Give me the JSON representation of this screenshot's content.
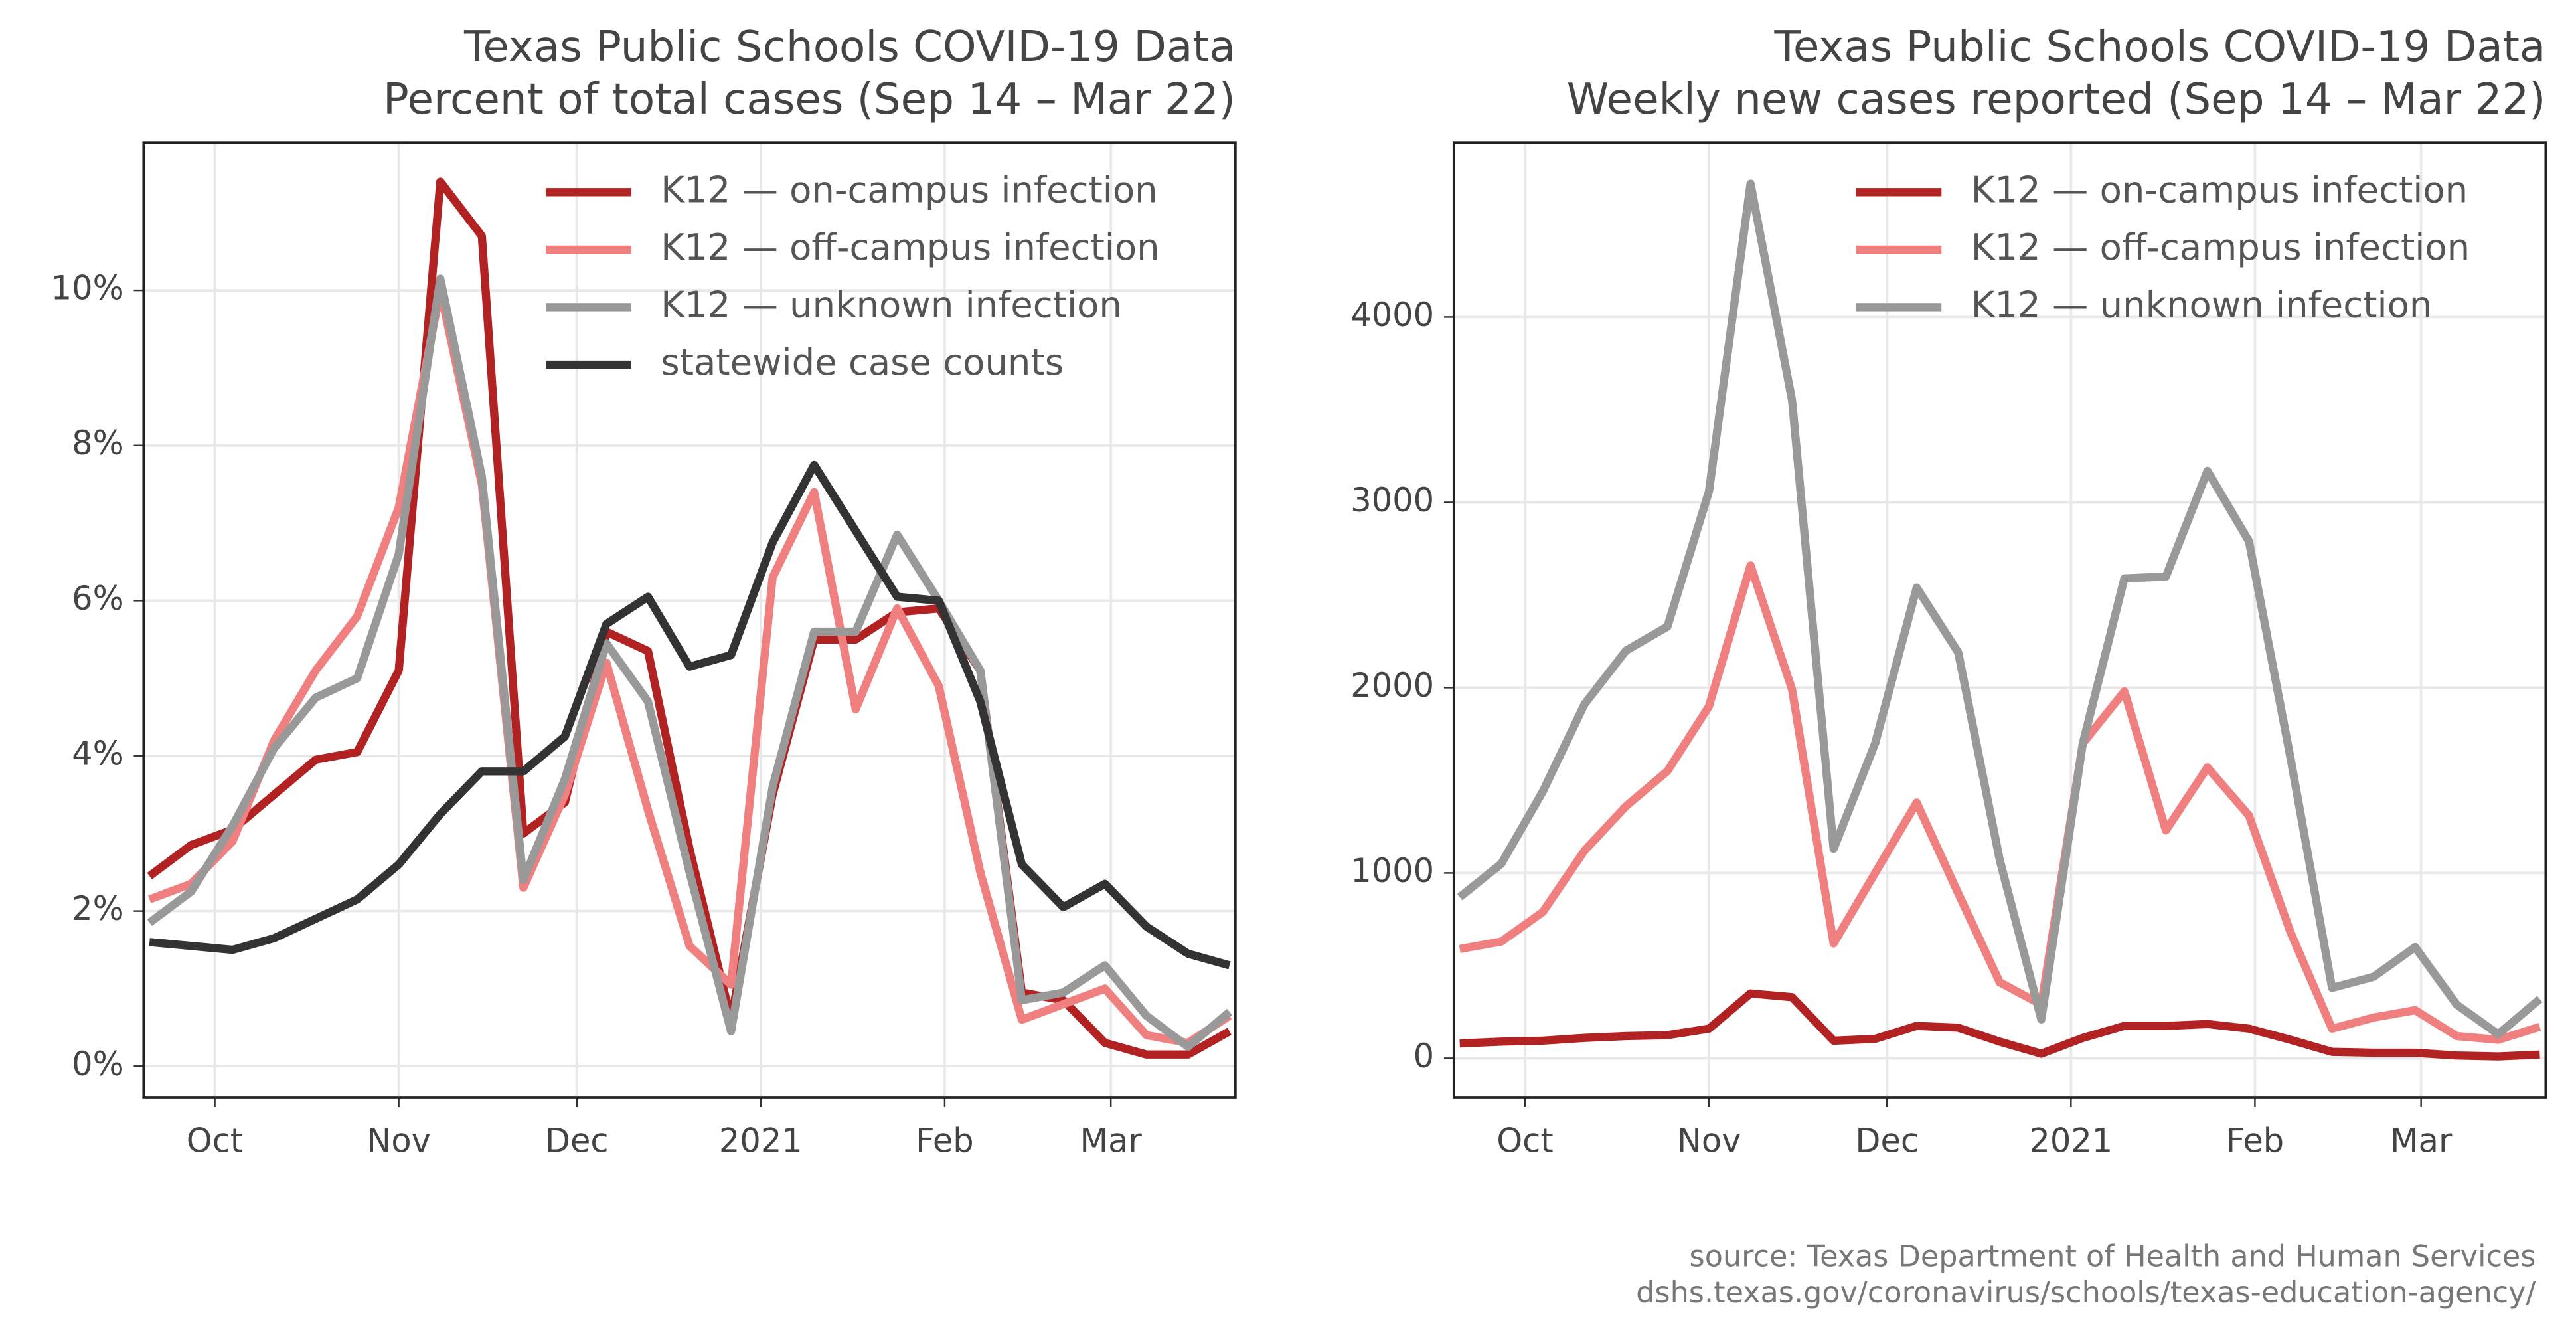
{
  "chart_data": [
    {
      "type": "line",
      "title": "Texas Public Schools COVID-19 Data",
      "subtitle": "Percent of total cases (Sep 14 – Mar 22)",
      "x": [
        "2020-09-20",
        "2020-09-27",
        "2020-10-04",
        "2020-10-11",
        "2020-10-18",
        "2020-10-25",
        "2020-11-01",
        "2020-11-08",
        "2020-11-15",
        "2020-11-22",
        "2020-11-29",
        "2020-12-06",
        "2020-12-13",
        "2020-12-20",
        "2020-12-27",
        "2021-01-03",
        "2021-01-10",
        "2021-01-17",
        "2021-01-24",
        "2021-01-31",
        "2021-02-07",
        "2021-02-14",
        "2021-02-21",
        "2021-02-28",
        "2021-03-07",
        "2021-03-14",
        "2021-03-21"
      ],
      "xlim": [
        "2020-09-19",
        "2021-03-22"
      ],
      "xticks": [
        {
          "value": "2020-10-01",
          "label": "Oct"
        },
        {
          "value": "2020-11-01",
          "label": "Nov"
        },
        {
          "value": "2020-12-01",
          "label": "Dec"
        },
        {
          "value": "2021-01-01",
          "label": "2021"
        },
        {
          "value": "2021-02-01",
          "label": "Feb"
        },
        {
          "value": "2021-03-01",
          "label": "Mar"
        }
      ],
      "ylim": [
        -0.4,
        11.9
      ],
      "yticks": [
        {
          "value": 0,
          "label": "0%"
        },
        {
          "value": 2,
          "label": "2%"
        },
        {
          "value": 4,
          "label": "4%"
        },
        {
          "value": 6,
          "label": "6%"
        },
        {
          "value": 8,
          "label": "8%"
        },
        {
          "value": 10,
          "label": "10%"
        }
      ],
      "grid": true,
      "legend": "upper right",
      "series": [
        {
          "name": "K12 — on-campus infection",
          "color": "#b22222",
          "values": [
            2.45,
            2.85,
            3.05,
            3.5,
            3.95,
            4.05,
            5.1,
            11.4,
            10.7,
            3.0,
            3.4,
            5.6,
            5.35,
            2.8,
            0.6,
            3.5,
            5.5,
            5.5,
            5.85,
            5.9,
            5.1,
            0.95,
            0.85,
            0.3,
            0.15,
            0.15,
            0.45
          ]
        },
        {
          "name": "K12 — off-campus infection",
          "color": "#f08080",
          "values": [
            2.15,
            2.35,
            2.9,
            4.2,
            5.1,
            5.8,
            7.2,
            10.0,
            7.5,
            2.3,
            3.5,
            5.2,
            3.3,
            1.55,
            1.05,
            6.3,
            7.4,
            4.6,
            5.9,
            4.9,
            2.5,
            0.6,
            0.8,
            1.0,
            0.4,
            0.3,
            0.65
          ]
        },
        {
          "name": "K12 — unknown infection",
          "color": "#999999",
          "values": [
            1.85,
            2.25,
            3.1,
            4.1,
            4.75,
            5.0,
            6.6,
            10.15,
            7.6,
            2.4,
            3.7,
            5.45,
            4.7,
            2.5,
            0.45,
            3.6,
            5.6,
            5.6,
            6.85,
            6.0,
            5.1,
            0.85,
            0.95,
            1.3,
            0.65,
            0.25,
            0.7
          ]
        },
        {
          "name": "statewide case counts",
          "color": "#333333",
          "values": [
            1.6,
            1.55,
            1.5,
            1.65,
            1.9,
            2.15,
            2.6,
            3.25,
            3.8,
            3.8,
            4.25,
            5.7,
            6.05,
            5.15,
            5.3,
            6.75,
            7.75,
            6.9,
            6.05,
            6.0,
            4.7,
            2.6,
            2.05,
            2.35,
            1.8,
            1.45,
            1.3
          ]
        }
      ]
    },
    {
      "type": "line",
      "title": "Texas Public Schools COVID-19 Data",
      "subtitle": "Weekly new cases reported (Sep 14 – Mar 22)",
      "x": [
        "2020-09-20",
        "2020-09-27",
        "2020-10-04",
        "2020-10-11",
        "2020-10-18",
        "2020-10-25",
        "2020-11-01",
        "2020-11-08",
        "2020-11-15",
        "2020-11-22",
        "2020-11-29",
        "2020-12-06",
        "2020-12-13",
        "2020-12-20",
        "2020-12-27",
        "2021-01-03",
        "2021-01-10",
        "2021-01-17",
        "2021-01-24",
        "2021-01-31",
        "2021-02-07",
        "2021-02-14",
        "2021-02-21",
        "2021-02-28",
        "2021-03-07",
        "2021-03-14",
        "2021-03-21"
      ],
      "xlim": [
        "2020-09-19",
        "2021-03-22"
      ],
      "xticks": [
        {
          "value": "2020-10-01",
          "label": "Oct"
        },
        {
          "value": "2020-11-01",
          "label": "Nov"
        },
        {
          "value": "2020-12-01",
          "label": "Dec"
        },
        {
          "value": "2021-01-01",
          "label": "2021"
        },
        {
          "value": "2021-02-01",
          "label": "Feb"
        },
        {
          "value": "2021-03-01",
          "label": "Mar"
        }
      ],
      "ylim": [
        -210,
        4940
      ],
      "yticks": [
        0,
        1000,
        2000,
        3000,
        4000
      ],
      "grid": true,
      "legend": "upper right",
      "series": [
        {
          "name": "K12 — on-campus infection",
          "color": "#b22222",
          "values": [
            80,
            90,
            95,
            110,
            120,
            125,
            160,
            350,
            330,
            95,
            105,
            175,
            165,
            90,
            25,
            110,
            175,
            175,
            185,
            160,
            100,
            35,
            30,
            30,
            15,
            10,
            20
          ]
        },
        {
          "name": "K12 — off-campus infection",
          "color": "#f08080",
          "values": [
            590,
            630,
            790,
            1120,
            1360,
            1550,
            1900,
            2660,
            1990,
            620,
            1000,
            1380,
            890,
            410,
            290,
            1700,
            1980,
            1230,
            1570,
            1310,
            680,
            160,
            220,
            260,
            120,
            100,
            170
          ]
        },
        {
          "name": "K12 — unknown infection",
          "color": "#999999",
          "values": [
            870,
            1050,
            1440,
            1910,
            2200,
            2330,
            3060,
            4720,
            3550,
            1130,
            1700,
            2540,
            2190,
            1070,
            210,
            1700,
            2590,
            2600,
            3170,
            2790,
            1620,
            380,
            440,
            600,
            290,
            130,
            320
          ]
        }
      ],
      "annotations": [
        "source: Texas Department of Health and Human Services",
        "dshs.texas.gov/coronavirus/schools/texas-education-agency/"
      ]
    }
  ]
}
